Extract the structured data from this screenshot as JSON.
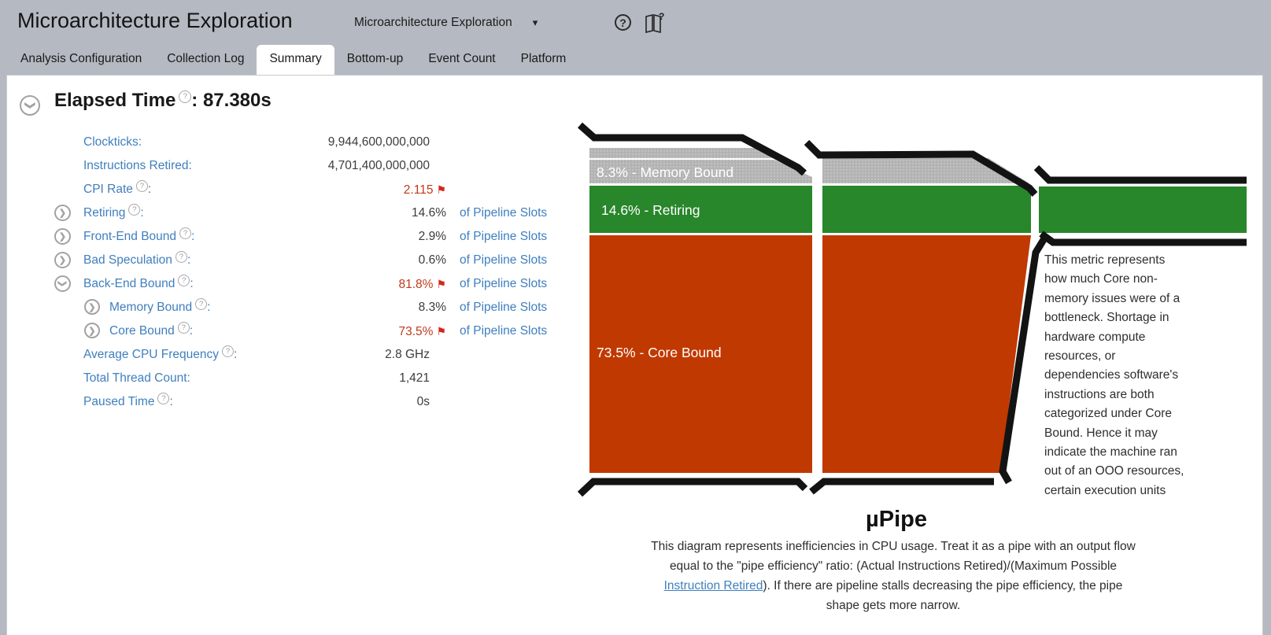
{
  "ui": {
    "colon": ":"
  },
  "icons": {
    "dropdown_caret": "▾",
    "flag": "⚑",
    "chevron": "❯",
    "help": "?"
  },
  "header": {
    "title": "Microarchitecture Exploration",
    "selector_value": "Microarchitecture Exploration"
  },
  "tabs": {
    "items": [
      {
        "label": "Analysis Configuration",
        "active": false
      },
      {
        "label": "Collection Log",
        "active": false
      },
      {
        "label": "Summary",
        "active": true
      },
      {
        "label": "Bottom-up",
        "active": false
      },
      {
        "label": "Event Count",
        "active": false
      },
      {
        "label": "Platform",
        "active": false
      }
    ]
  },
  "summary": {
    "heading": {
      "label": "Elapsed Time",
      "suffix": ": 87.380s"
    },
    "metrics": [
      {
        "label": "Clockticks",
        "help": false,
        "chevron": null,
        "level": 1,
        "value": "9,944,600,000,000",
        "flag": false,
        "red": false,
        "pad": true,
        "unit": ""
      },
      {
        "label": "Instructions Retired",
        "help": false,
        "chevron": null,
        "level": 1,
        "value": "4,701,400,000,000",
        "flag": false,
        "red": false,
        "pad": true,
        "unit": ""
      },
      {
        "label": "CPI Rate",
        "help": true,
        "chevron": null,
        "level": 1,
        "value": "2.115",
        "flag": true,
        "red": true,
        "pad": false,
        "unit": ""
      },
      {
        "label": "Retiring",
        "help": true,
        "chevron": "right",
        "level": 1,
        "value": "14.6%",
        "flag": false,
        "red": false,
        "pad": false,
        "unit": "of Pipeline Slots"
      },
      {
        "label": "Front-End Bound",
        "help": true,
        "chevron": "right",
        "level": 1,
        "value": "2.9%",
        "flag": false,
        "red": false,
        "pad": false,
        "unit": "of Pipeline Slots"
      },
      {
        "label": "Bad Speculation",
        "help": true,
        "chevron": "right",
        "level": 1,
        "value": "0.6%",
        "flag": false,
        "red": false,
        "pad": false,
        "unit": "of Pipeline Slots"
      },
      {
        "label": "Back-End Bound",
        "help": true,
        "chevron": "down",
        "level": 1,
        "value": "81.8%",
        "flag": true,
        "red": true,
        "pad": false,
        "unit": "of Pipeline Slots"
      },
      {
        "label": "Memory Bound",
        "help": true,
        "chevron": "right",
        "level": 2,
        "value": "8.3%",
        "flag": false,
        "red": false,
        "pad": false,
        "unit": "of Pipeline Slots"
      },
      {
        "label": "Core Bound",
        "help": true,
        "chevron": "right",
        "level": 2,
        "value": "73.5%",
        "flag": true,
        "red": true,
        "pad": false,
        "unit": "of Pipeline Slots"
      },
      {
        "label": "Average CPU Frequency",
        "help": true,
        "chevron": null,
        "level": 1,
        "value": "2.8 GHz",
        "flag": false,
        "red": false,
        "pad": true,
        "unit": ""
      },
      {
        "label": "Total Thread Count",
        "help": false,
        "chevron": null,
        "level": 1,
        "value": "1,421",
        "flag": false,
        "red": false,
        "pad": true,
        "unit": ""
      },
      {
        "label": "Paused Time",
        "help": true,
        "chevron": null,
        "level": 1,
        "value": "0s",
        "flag": false,
        "red": false,
        "pad": true,
        "unit": ""
      }
    ]
  },
  "pipe": {
    "caption": "µPipe",
    "bands": {
      "memory": {
        "label": "8.3% - Memory Bound",
        "color": "#b3b3b3"
      },
      "retiring": {
        "label": "14.6% - Retiring",
        "color": "#28862b"
      },
      "core": {
        "label": "73.5% - Core Bound",
        "color": "#c03900"
      }
    },
    "outline_color": "#131313",
    "tooltip_lines": [
      "This metric represents",
      "how much Core non-",
      "memory issues were of a",
      "bottleneck. Shortage in",
      "hardware compute",
      "resources, or",
      "dependencies software's",
      "instructions are both",
      "categorized under Core",
      "Bound. Hence it may",
      "indicate the machine ran",
      "out of an OOO resources,",
      "certain execution units"
    ],
    "description_before": "This diagram represents inefficiencies in CPU usage. Treat it as a pipe with an output flow\nequal to the \"pipe efficiency\" ratio: (Actual Instructions Retired)/(Maximum Possible\n",
    "description_link": "Instruction Retired",
    "description_after": "). If there are pipeline stalls decreasing the pipe efficiency, the pipe\nshape gets more narrow."
  }
}
